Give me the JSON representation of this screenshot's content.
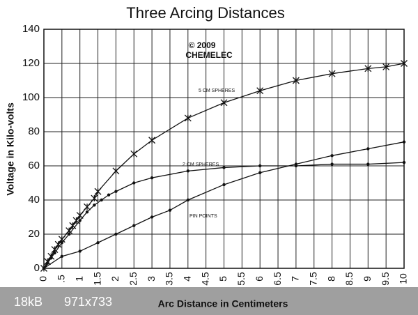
{
  "chart_data": {
    "type": "line",
    "title": "Three Arcing Distances",
    "x_label": "Arc Distance in Centimeters",
    "y_label": "Voltage in Kilo-volts",
    "annotations": {
      "copyright": "© 2009",
      "author": "CHEMELEC",
      "watermark_size": "18kB",
      "watermark_dims": "971x733"
    },
    "xlim": [
      0,
      10
    ],
    "ylim": [
      0,
      140
    ],
    "xticks": [
      0,
      {
        "value": 0.5,
        "label": ".5"
      },
      1,
      1.5,
      2,
      2.5,
      3,
      3.5,
      4,
      4.5,
      5,
      5.5,
      6,
      6.5,
      7,
      7.5,
      8,
      8.5,
      9,
      9.5,
      10
    ],
    "yticks": [
      0,
      20,
      40,
      60,
      80,
      100,
      120,
      140
    ],
    "grid": true,
    "series": [
      {
        "name": "5 CM SPHERES",
        "color": "#111111",
        "marker": "star",
        "x": [
          0,
          0.1,
          0.2,
          0.3,
          0.4,
          0.5,
          0.7,
          0.8,
          0.9,
          1,
          1.2,
          1.4,
          1.5,
          2,
          2.5,
          3,
          4,
          5,
          6,
          7,
          8,
          9,
          9.5,
          10
        ],
        "values": [
          0,
          4,
          7,
          11,
          14,
          17,
          22,
          25,
          28,
          31,
          36,
          41,
          45,
          57,
          67,
          75,
          88,
          97,
          104,
          110,
          114,
          117,
          118,
          120
        ]
      },
      {
        "name": "2 CM SPHERES",
        "color": "#111111",
        "marker": "dot",
        "x": [
          0,
          0.1,
          0.2,
          0.3,
          0.5,
          0.7,
          1,
          1.2,
          1.4,
          1.6,
          1.8,
          2,
          2.5,
          3,
          4,
          5,
          6,
          7,
          8,
          9,
          10
        ],
        "values": [
          0,
          3,
          6,
          9,
          15,
          20,
          28,
          33,
          37,
          40,
          43,
          45,
          50,
          53,
          57,
          59,
          60,
          60,
          61,
          61,
          62
        ]
      },
      {
        "name": "PIN POINTS",
        "color": "#111111",
        "marker": "dot",
        "x": [
          0,
          0.5,
          1,
          1.5,
          2,
          2.5,
          3,
          3.5,
          4,
          5,
          6,
          7,
          8,
          9,
          10
        ],
        "values": [
          0,
          7,
          10,
          15,
          20,
          25,
          30,
          34,
          40,
          49,
          56,
          61,
          66,
          70,
          74
        ]
      }
    ]
  }
}
